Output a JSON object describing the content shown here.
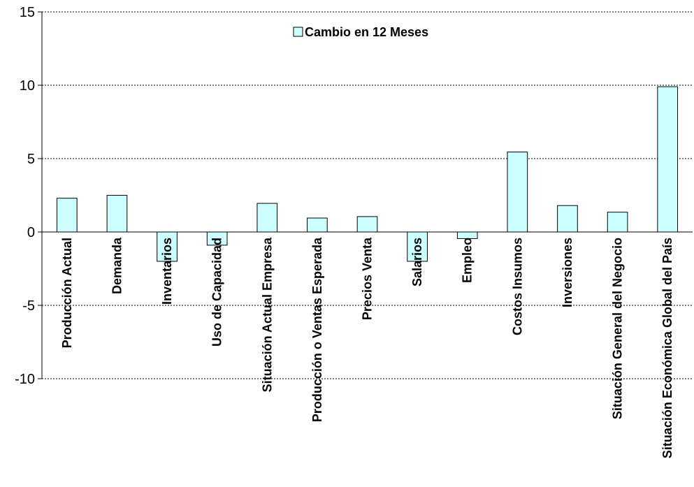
{
  "chart_data": {
    "type": "bar",
    "categories": [
      "Producción Actual",
      "Demanda",
      "Inventarios",
      "Uso de Capacidad",
      "Situación Actual Empresa",
      "Producción o Ventas Esperada",
      "Precios Venta",
      "Salarios",
      "Empleo",
      "Costos Insumos",
      "Inversiones",
      "Situación General del Negocio",
      "Situación Económica Global del País"
    ],
    "series": [
      {
        "name": "Cambio en 12 Meses",
        "values": [
          2.3,
          2.5,
          -2.0,
          -0.9,
          1.95,
          0.95,
          1.05,
          -2.0,
          -0.45,
          5.45,
          1.8,
          1.35,
          9.9
        ],
        "color": "#ccffff"
      }
    ],
    "ylim": [
      -10,
      15
    ],
    "yticks": [
      15,
      10,
      5,
      0,
      -5,
      -10
    ],
    "grid": true,
    "legend_position": "top-center"
  }
}
